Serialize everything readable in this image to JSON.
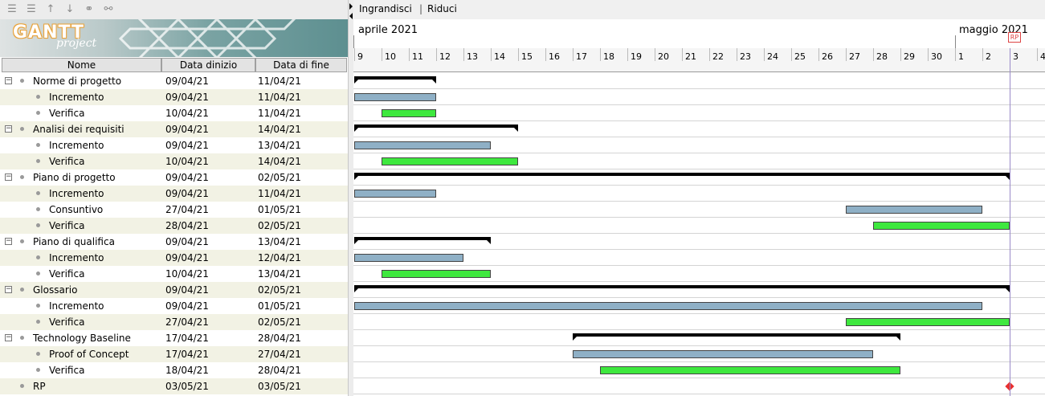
{
  "toolbar": {
    "icons": [
      "indent-icon",
      "outdent-icon",
      "move-up-icon",
      "move-down-icon",
      "link-icon",
      "unlink-icon"
    ]
  },
  "logo": {
    "main": "GANTT",
    "sub": "project"
  },
  "columns": {
    "name": "Nome",
    "start": "Data dinizio",
    "end": "Data di fine"
  },
  "chart_toolbar": {
    "zoom_in": "Ingrandisci",
    "separator": "|",
    "zoom_out": "Riduci"
  },
  "timeline": {
    "months": [
      {
        "label": "aprile 2021"
      },
      {
        "label": "maggio 2021"
      }
    ],
    "days": [
      "9",
      "10",
      "11",
      "12",
      "13",
      "14",
      "15",
      "16",
      "17",
      "18",
      "19",
      "20",
      "21",
      "22",
      "23",
      "24",
      "25",
      "26",
      "27",
      "28",
      "29",
      "30",
      "1",
      "2",
      "3",
      "4"
    ],
    "marker_label": "RP"
  },
  "tasks": [
    {
      "name": "Norme di progetto",
      "start": "09/04/21",
      "end": "11/04/21",
      "level": 0,
      "type": "summary",
      "s": 0,
      "e": 3
    },
    {
      "name": "Incremento",
      "start": "09/04/21",
      "end": "11/04/21",
      "level": 1,
      "type": "inc",
      "s": 0,
      "e": 3
    },
    {
      "name": "Verifica",
      "start": "10/04/21",
      "end": "11/04/21",
      "level": 1,
      "type": "ver",
      "s": 1,
      "e": 3
    },
    {
      "name": "Analisi dei requisiti",
      "start": "09/04/21",
      "end": "14/04/21",
      "level": 0,
      "type": "summary",
      "s": 0,
      "e": 6
    },
    {
      "name": "Incremento",
      "start": "09/04/21",
      "end": "13/04/21",
      "level": 1,
      "type": "inc",
      "s": 0,
      "e": 5
    },
    {
      "name": "Verifica",
      "start": "10/04/21",
      "end": "14/04/21",
      "level": 1,
      "type": "ver",
      "s": 1,
      "e": 6
    },
    {
      "name": "Piano di progetto",
      "start": "09/04/21",
      "end": "02/05/21",
      "level": 0,
      "type": "summary",
      "s": 0,
      "e": 24
    },
    {
      "name": "Incremento",
      "start": "09/04/21",
      "end": "11/04/21",
      "level": 1,
      "type": "inc",
      "s": 0,
      "e": 3
    },
    {
      "name": "Consuntivo",
      "start": "27/04/21",
      "end": "01/05/21",
      "level": 1,
      "type": "inc",
      "s": 18,
      "e": 23
    },
    {
      "name": "Verifica",
      "start": "28/04/21",
      "end": "02/05/21",
      "level": 1,
      "type": "ver",
      "s": 19,
      "e": 24
    },
    {
      "name": "Piano di qualifica",
      "start": "09/04/21",
      "end": "13/04/21",
      "level": 0,
      "type": "summary",
      "s": 0,
      "e": 5
    },
    {
      "name": "Incremento",
      "start": "09/04/21",
      "end": "12/04/21",
      "level": 1,
      "type": "inc",
      "s": 0,
      "e": 4
    },
    {
      "name": "Verifica",
      "start": "10/04/21",
      "end": "13/04/21",
      "level": 1,
      "type": "ver",
      "s": 1,
      "e": 5
    },
    {
      "name": "Glossario",
      "start": "09/04/21",
      "end": "02/05/21",
      "level": 0,
      "type": "summary",
      "s": 0,
      "e": 24
    },
    {
      "name": "Incremento",
      "start": "09/04/21",
      "end": "01/05/21",
      "level": 1,
      "type": "inc",
      "s": 0,
      "e": 23
    },
    {
      "name": "Verifica",
      "start": "27/04/21",
      "end": "02/05/21",
      "level": 1,
      "type": "ver",
      "s": 18,
      "e": 24
    },
    {
      "name": "Technology Baseline",
      "start": "17/04/21",
      "end": "28/04/21",
      "level": 0,
      "type": "summary",
      "s": 8,
      "e": 20
    },
    {
      "name": "Proof of Concept",
      "start": "17/04/21",
      "end": "27/04/21",
      "level": 1,
      "type": "inc",
      "s": 8,
      "e": 19
    },
    {
      "name": "Verifica",
      "start": "18/04/21",
      "end": "28/04/21",
      "level": 1,
      "type": "ver",
      "s": 9,
      "e": 20
    },
    {
      "name": "RP",
      "start": "03/05/21",
      "end": "03/05/21",
      "level": 0,
      "type": "milestone",
      "s": 24,
      "e": 24
    }
  ]
}
